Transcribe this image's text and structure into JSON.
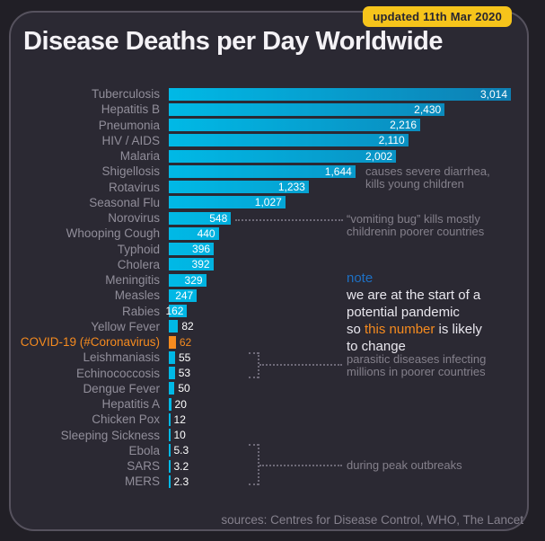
{
  "header": {
    "updated_badge": "updated 11th Mar 2020",
    "title": "Disease Deaths per Day Worldwide"
  },
  "chart_data": {
    "type": "bar",
    "orientation": "horizontal",
    "title": "Disease Deaths per Day Worldwide",
    "xlabel": "deaths per day",
    "xlim": [
      0,
      3014
    ],
    "grid": false,
    "legend": "none",
    "categories": [
      "Tuberculosis",
      "Hepatitis B",
      "Pneumonia",
      "HIV / AIDS",
      "Malaria",
      "Shigellosis",
      "Rotavirus",
      "Seasonal Flu",
      "Norovirus",
      "Whooping Cough",
      "Typhoid",
      "Cholera",
      "Meningitis",
      "Measles",
      "Rabies",
      "Yellow Fever",
      "COVID-19 (#Coronavirus)",
      "Leishmaniasis",
      "Echinococcosis",
      "Dengue Fever",
      "Hepatitis A",
      "Chicken Pox",
      "Sleeping Sickness",
      "Ebola",
      "SARS",
      "MERS"
    ],
    "values": [
      3014,
      2430,
      2216,
      2110,
      2002,
      1644,
      1233,
      1027,
      548,
      440,
      396,
      392,
      329,
      247,
      162,
      82,
      62,
      55,
      53,
      50,
      20,
      12,
      10,
      5.3,
      3.2,
      2.3
    ],
    "value_labels": [
      "3,014",
      "2,430",
      "2,216",
      "2,110",
      "2,002",
      "1,644",
      "1,233",
      "1,027",
      "548",
      "440",
      "396",
      "392",
      "329",
      "247",
      "162",
      "82",
      "62",
      "55",
      "53",
      "50",
      "20",
      "12",
      "10",
      "5.3",
      "3.2",
      "2.3"
    ],
    "highlight_index": 16,
    "colors": {
      "bar_gradient_start": "#00b9e6",
      "bar_gradient_end": "#0e7fb3",
      "highlight_orange": "#f68b1f",
      "label_gray": "#918e9a",
      "badge_yellow": "#f6c41b",
      "note_blue": "#1e70c4"
    }
  },
  "annotations": {
    "shigellosis": {
      "line1": "causes severe diarrhea,",
      "line2": "kills young children"
    },
    "norovirus": {
      "line1": "“vomiting bug” kills mostly",
      "line2": "childrenin poorer countries"
    },
    "parasitic": {
      "line1": "parasitic diseases infecting",
      "line2": "millions in poorer countries"
    },
    "outbreaks": {
      "text": "during peak outbreaks"
    }
  },
  "note": {
    "heading": "note",
    "line1": "we are at the start of a",
    "line2": "potential pandemic",
    "line3_prefix": "so ",
    "line3_highlight": "this number",
    "line3_suffix": " is likely",
    "line4": "to change"
  },
  "footer": {
    "sources": "sources: Centres for Disease Control, WHO, The Lancet"
  }
}
